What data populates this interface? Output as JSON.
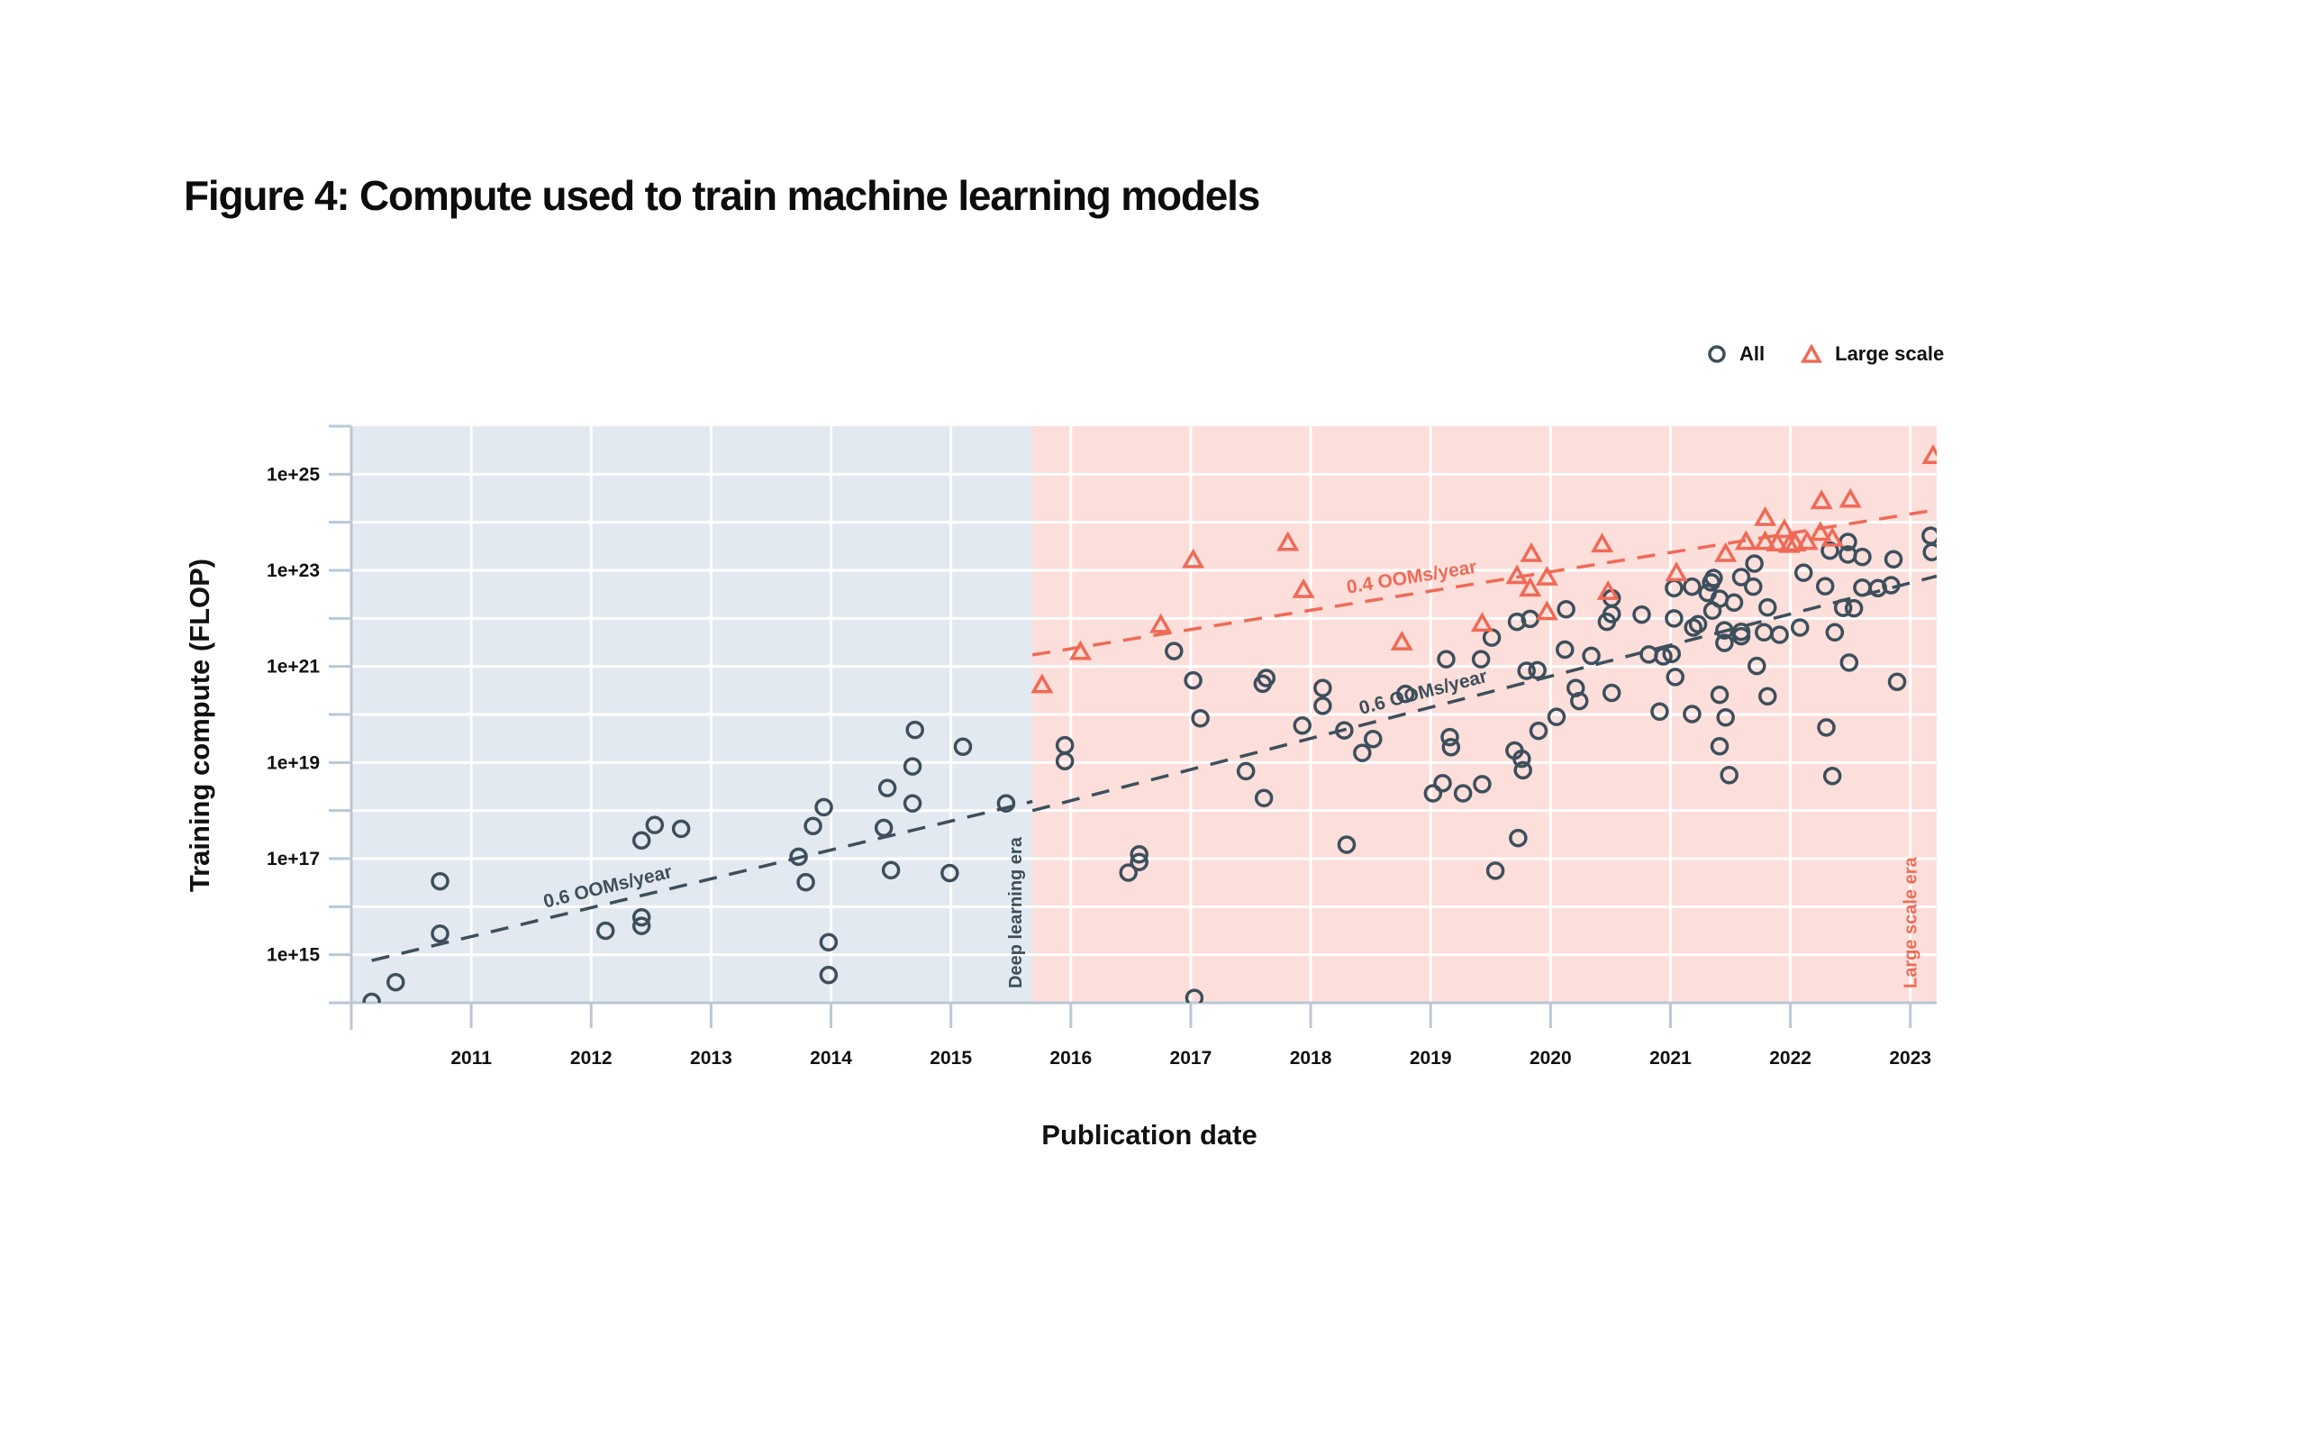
{
  "chart_data": {
    "type": "scatter",
    "title": "Figure 4: Compute used to train machine learning models",
    "xlabel": "Publication date",
    "ylabel": "Training compute (FLOP)",
    "xlim": [
      2010.0,
      2023.22
    ],
    "ylim_log10": [
      14,
      26
    ],
    "y_scale": "log",
    "grid": true,
    "legend_position": "top-right",
    "x_ticks": [
      2010,
      2011,
      2012,
      2013,
      2014,
      2015,
      2016,
      2017,
      2018,
      2019,
      2020,
      2021,
      2022,
      2023
    ],
    "x_tick_labels": [
      "",
      "2011",
      "2012",
      "2013",
      "2014",
      "2015",
      "2016",
      "2017",
      "2018",
      "2019",
      "2020",
      "2021",
      "2022",
      "2023"
    ],
    "y_ticks_log10": [
      14,
      15,
      16,
      17,
      18,
      19,
      20,
      21,
      22,
      23,
      24,
      25,
      26
    ],
    "y_tick_labels": [
      "",
      "1e+15",
      "",
      "1e+17",
      "",
      "1e+19",
      "",
      "1e+21",
      "",
      "1e+23",
      "",
      "1e+25",
      ""
    ],
    "eras": [
      {
        "name": "Pre deep learning era",
        "label": "",
        "start": 2010.0,
        "end": 2015.68,
        "color": "#e3e9f0"
      },
      {
        "name": "Deep learning era",
        "label": "Deep learning era",
        "start": 2015.68,
        "end": 2023.22,
        "color": "#fcdeda"
      },
      {
        "name": "Large scale era",
        "label": "Large scale era",
        "start": 2015.68,
        "end": 2023.22
      }
    ],
    "series": [
      {
        "name": "All",
        "marker": "circle",
        "color": "#3d4f5c",
        "points": [
          [
            2010.17,
            14.02
          ],
          [
            2010.37,
            14.43
          ],
          [
            2010.74,
            16.53
          ],
          [
            2010.74,
            15.44
          ],
          [
            2012.12,
            15.5
          ],
          [
            2012.42,
            15.78
          ],
          [
            2012.42,
            15.6
          ],
          [
            2012.42,
            17.38
          ],
          [
            2012.53,
            17.7
          ],
          [
            2012.75,
            17.62
          ],
          [
            2013.73,
            17.04
          ],
          [
            2013.79,
            16.51
          ],
          [
            2013.85,
            17.68
          ],
          [
            2013.94,
            18.07
          ],
          [
            2013.98,
            15.26
          ],
          [
            2013.98,
            14.58
          ],
          [
            2014.47,
            18.47
          ],
          [
            2014.44,
            17.64
          ],
          [
            2014.5,
            16.76
          ],
          [
            2014.68,
            18.92
          ],
          [
            2014.68,
            18.15
          ],
          [
            2014.7,
            19.68
          ],
          [
            2014.99,
            16.7
          ],
          [
            2015.1,
            19.33
          ],
          [
            2015.46,
            18.15
          ],
          [
            2015.95,
            19.36
          ],
          [
            2015.95,
            19.03
          ],
          [
            2016.48,
            16.71
          ],
          [
            2016.57,
            17.09
          ],
          [
            2016.57,
            16.93
          ],
          [
            2016.86,
            21.32
          ],
          [
            2017.02,
            20.71
          ],
          [
            2017.03,
            14.1
          ],
          [
            2017.08,
            19.92
          ],
          [
            2017.46,
            18.82
          ],
          [
            2017.6,
            20.64
          ],
          [
            2017.63,
            20.76
          ],
          [
            2017.61,
            18.26
          ],
          [
            2017.93,
            19.77
          ],
          [
            2018.1,
            20.55
          ],
          [
            2018.1,
            20.18
          ],
          [
            2018.3,
            17.29
          ],
          [
            2018.28,
            19.67
          ],
          [
            2018.43,
            19.2
          ],
          [
            2018.52,
            19.49
          ],
          [
            2018.79,
            20.43
          ],
          [
            2019.13,
            21.15
          ],
          [
            2019.16,
            19.53
          ],
          [
            2019.17,
            19.32
          ],
          [
            2019.1,
            18.57
          ],
          [
            2019.02,
            18.36
          ],
          [
            2019.27,
            18.36
          ],
          [
            2019.43,
            18.55
          ],
          [
            2019.42,
            21.15
          ],
          [
            2019.51,
            21.6
          ],
          [
            2019.54,
            16.75
          ],
          [
            2019.7,
            19.25
          ],
          [
            2019.76,
            19.08
          ],
          [
            2019.77,
            18.84
          ],
          [
            2019.73,
            17.43
          ],
          [
            2019.72,
            21.93
          ],
          [
            2019.83,
            21.99
          ],
          [
            2019.8,
            20.91
          ],
          [
            2019.89,
            20.92
          ],
          [
            2019.9,
            19.66
          ],
          [
            2020.05,
            19.95
          ],
          [
            2020.13,
            22.19
          ],
          [
            2020.12,
            21.35
          ],
          [
            2020.21,
            20.55
          ],
          [
            2020.24,
            20.28
          ],
          [
            2020.34,
            21.22
          ],
          [
            2020.51,
            20.45
          ],
          [
            2020.51,
            22.42
          ],
          [
            2020.51,
            22.09
          ],
          [
            2020.47,
            21.93
          ],
          [
            2020.76,
            22.08
          ],
          [
            2020.82,
            21.25
          ],
          [
            2020.91,
            20.06
          ],
          [
            2020.94,
            21.21
          ],
          [
            2021.01,
            21.26
          ],
          [
            2021.03,
            22.63
          ],
          [
            2021.03,
            22.0
          ],
          [
            2021.04,
            20.78
          ],
          [
            2021.18,
            22.66
          ],
          [
            2021.18,
            20.01
          ],
          [
            2021.19,
            21.81
          ],
          [
            2021.23,
            21.88
          ],
          [
            2021.31,
            22.53
          ],
          [
            2021.34,
            22.75
          ],
          [
            2021.36,
            22.84
          ],
          [
            2021.35,
            22.16
          ],
          [
            2021.41,
            22.41
          ],
          [
            2021.41,
            20.41
          ],
          [
            2021.45,
            21.75
          ],
          [
            2021.45,
            21.49
          ],
          [
            2021.46,
            19.94
          ],
          [
            2021.41,
            19.34
          ],
          [
            2021.49,
            18.74
          ],
          [
            2021.53,
            22.33
          ],
          [
            2021.59,
            22.86
          ],
          [
            2021.59,
            21.72
          ],
          [
            2021.59,
            21.63
          ],
          [
            2021.69,
            22.66
          ],
          [
            2021.7,
            23.14
          ],
          [
            2021.72,
            21.01
          ],
          [
            2021.78,
            21.71
          ],
          [
            2021.81,
            22.23
          ],
          [
            2021.81,
            20.38
          ],
          [
            2021.91,
            21.66
          ],
          [
            2022.08,
            21.81
          ],
          [
            2022.11,
            22.95
          ],
          [
            2022.33,
            23.41
          ],
          [
            2022.48,
            23.59
          ],
          [
            2022.48,
            23.33
          ],
          [
            2022.6,
            23.28
          ],
          [
            2022.86,
            23.23
          ],
          [
            2022.29,
            22.67
          ],
          [
            2022.6,
            22.64
          ],
          [
            2022.73,
            22.63
          ],
          [
            2022.84,
            22.69
          ],
          [
            2022.44,
            22.22
          ],
          [
            2022.53,
            22.21
          ],
          [
            2022.37,
            21.71
          ],
          [
            2022.49,
            21.08
          ],
          [
            2022.89,
            20.68
          ],
          [
            2022.3,
            19.73
          ],
          [
            2022.35,
            18.72
          ],
          [
            2023.17,
            23.72
          ],
          [
            2023.18,
            23.38
          ]
        ]
      },
      {
        "name": "Large scale",
        "marker": "triangle",
        "color": "#ef6a56",
        "points": [
          [
            2015.76,
            20.61
          ],
          [
            2016.08,
            21.3
          ],
          [
            2016.75,
            21.86
          ],
          [
            2017.02,
            23.21
          ],
          [
            2017.81,
            23.57
          ],
          [
            2017.94,
            22.59
          ],
          [
            2018.76,
            21.5
          ],
          [
            2019.43,
            21.89
          ],
          [
            2019.72,
            22.88
          ],
          [
            2019.84,
            23.34
          ],
          [
            2019.83,
            22.62
          ],
          [
            2019.97,
            22.85
          ],
          [
            2019.97,
            22.13
          ],
          [
            2020.43,
            23.54
          ],
          [
            2020.48,
            22.55
          ],
          [
            2021.05,
            22.94
          ],
          [
            2021.46,
            23.34
          ],
          [
            2021.63,
            23.59
          ],
          [
            2021.79,
            24.09
          ],
          [
            2021.95,
            23.84
          ],
          [
            2021.79,
            23.59
          ],
          [
            2021.89,
            23.56
          ],
          [
            2021.99,
            23.53
          ],
          [
            2022.04,
            23.56
          ],
          [
            2022.14,
            23.59
          ],
          [
            2022.25,
            23.78
          ],
          [
            2022.26,
            24.44
          ],
          [
            2022.35,
            23.66
          ],
          [
            2022.5,
            24.47
          ],
          [
            2023.19,
            25.38
          ]
        ]
      }
    ],
    "trend_lines": [
      {
        "name": "pre-deep-learning trend",
        "label": "0.6 OOMs/year",
        "color": "#3d4f5c",
        "x0": 2010.17,
        "y0": 14.88,
        "x1": 2015.68,
        "y1": 18.19,
        "label_at": 2012.15
      },
      {
        "name": "deep-learning trend",
        "label": "0.6 OOMs/year",
        "color": "#3d4f5c",
        "x0": 2015.68,
        "y0": 18.0,
        "x1": 2023.22,
        "y1": 22.88,
        "label_at": 2018.95
      },
      {
        "name": "large-scale trend",
        "label": "0.4 OOMs/year",
        "color": "#ef6a56",
        "x0": 2015.68,
        "y0": 21.24,
        "x1": 2023.22,
        "y1": 24.26,
        "label_at": 2018.85
      }
    ]
  },
  "legend": [
    {
      "label": "All",
      "marker": "circle",
      "color": "#3d4f5c"
    },
    {
      "label": "Large scale",
      "marker": "triangle",
      "color": "#ef6a56"
    }
  ]
}
